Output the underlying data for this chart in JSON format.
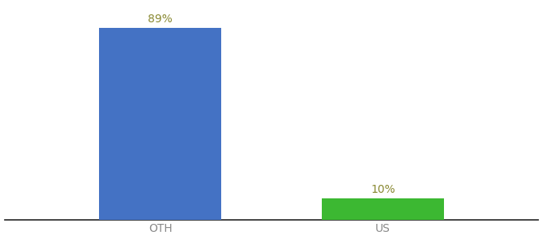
{
  "categories": [
    "OTH",
    "US"
  ],
  "values": [
    89,
    10
  ],
  "bar_colors": [
    "#4472c4",
    "#3cb832"
  ],
  "label_texts": [
    "89%",
    "10%"
  ],
  "background_color": "#ffffff",
  "label_color": "#888830",
  "label_fontsize": 10,
  "tick_fontsize": 10,
  "tick_color": "#888888",
  "ylim": [
    0,
    100
  ],
  "bar_width": 0.55,
  "x_positions": [
    1,
    2
  ],
  "xlim": [
    0.3,
    2.7
  ]
}
